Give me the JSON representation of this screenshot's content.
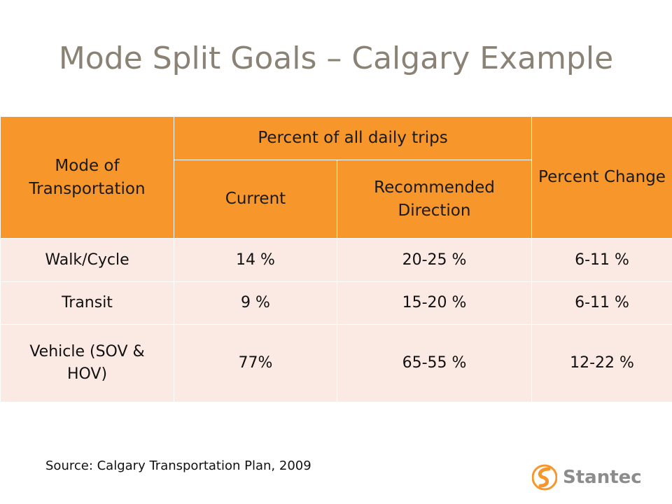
{
  "title": "Mode Split Goals – Calgary Example",
  "table": {
    "header": {
      "mode": "Mode of Transportation",
      "percent_daily": "Percent of all daily trips",
      "current": "Current",
      "recommended": "Recommended Direction",
      "change": "Percent Change"
    },
    "rows": [
      {
        "mode": "Walk/Cycle",
        "current": "14 %",
        "recommended": "20-25 %",
        "change": "6-11 %"
      },
      {
        "mode": "Transit",
        "current": "9 %",
        "recommended": "15-20 %",
        "change": "6-11 %"
      },
      {
        "mode": "Vehicle (SOV & HOV)",
        "current": "77%",
        "recommended": "65-55 %",
        "change": "12-22 %"
      }
    ]
  },
  "source": "Source: Calgary Transportation Plan, 2009",
  "logo": {
    "text": "Stantec"
  },
  "colors": {
    "header": "#f7962a",
    "row": "#fbe9e4",
    "title": "#8a8275",
    "logo_orange": "#f7962a"
  }
}
